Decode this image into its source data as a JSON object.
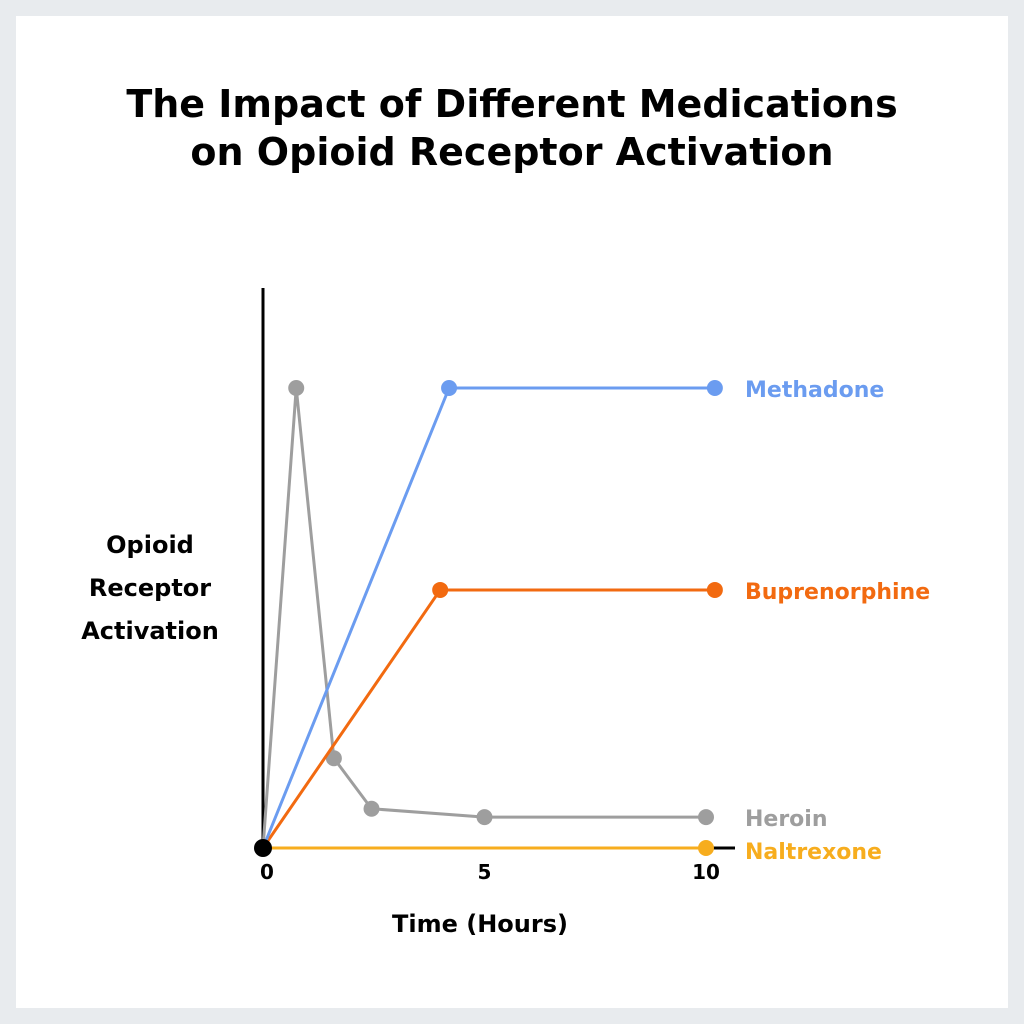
{
  "chart_data": {
    "type": "line",
    "title_lines": [
      "The Impact of Different Medications",
      "on Opioid Receptor Activation"
    ],
    "ylabel_lines": [
      "Opioid",
      "Receptor",
      "Activation"
    ],
    "xlabel": "Time (Hours)",
    "xticks": [
      0,
      5,
      10
    ],
    "xlim": [
      0,
      10
    ],
    "ylim": [
      0,
      10
    ],
    "grid": false,
    "legend": "end-of-line labels",
    "series": [
      {
        "name": "Methadone",
        "color": "#6b9cf0",
        "points": [
          [
            0,
            0
          ],
          [
            4.2,
            8.2
          ],
          [
            10.2,
            8.2
          ]
        ]
      },
      {
        "name": "Buprenorphine",
        "color": "#f26a10",
        "points": [
          [
            0,
            0
          ],
          [
            4.0,
            4.6
          ],
          [
            10.2,
            4.6
          ]
        ]
      },
      {
        "name": "Heroin",
        "color": "#9e9e9e",
        "points": [
          [
            0,
            0
          ],
          [
            0.75,
            8.2
          ],
          [
            1.6,
            1.6
          ],
          [
            2.45,
            0.7
          ],
          [
            5.0,
            0.55
          ],
          [
            10.0,
            0.55
          ]
        ]
      },
      {
        "name": "Naltrexone",
        "color": "#f7ad1e",
        "points": [
          [
            0,
            0
          ],
          [
            10.0,
            0
          ]
        ]
      }
    ]
  }
}
